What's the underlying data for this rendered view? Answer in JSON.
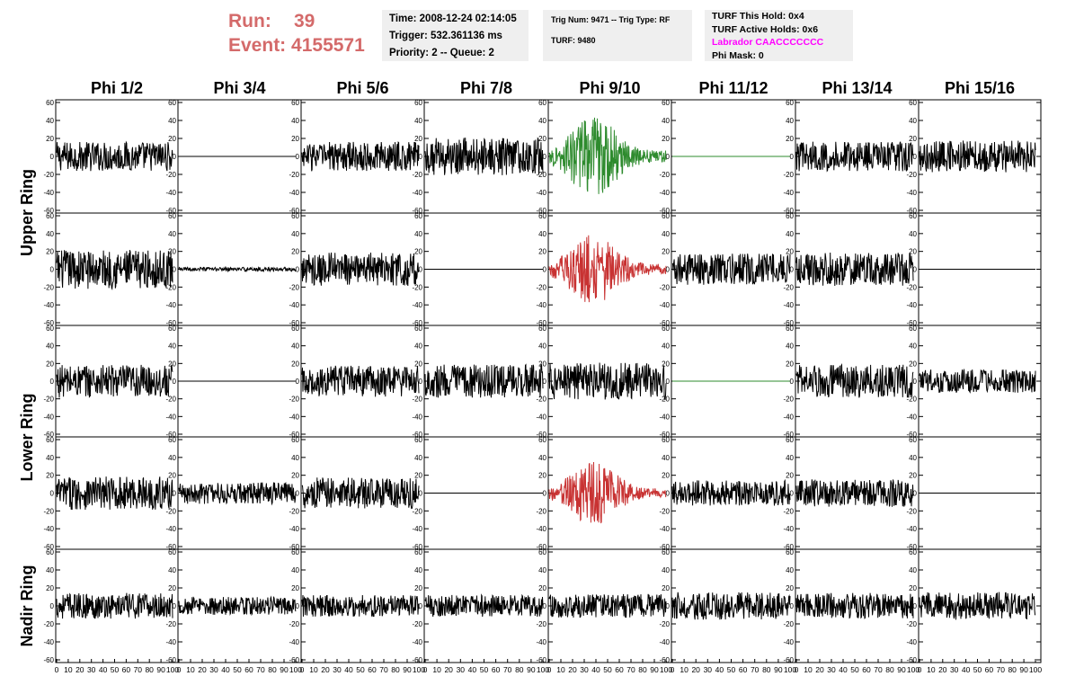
{
  "header": {
    "run_label": "Run:",
    "run_value": "39",
    "event_label": "Event:",
    "event_value": "4155571",
    "time": "Time: 2008-12-24 02:14:05",
    "trigger": "Trigger: 532.361136 ms",
    "priority": "Priority: 2 -- Queue: 2",
    "trig_num": "Trig Num: 9471 -- Trig Type: RF",
    "turf": "TURF: 9480",
    "turf_hold": "TURF This Hold: 0x4",
    "turf_active": "TURF Active Holds: 0x6",
    "labrador": "Labrador CAACCCCCCC",
    "phi_mask": "Phi Mask: 0"
  },
  "colors": {
    "run_text": "#d46a6a",
    "labrador_text": "#ff00ff",
    "trace_default": "#000000",
    "trace_green": "#2e8b2e",
    "trace_red": "#c83232"
  },
  "chart_data": {
    "type": "line",
    "column_headers": [
      "Phi 1/2",
      "Phi 3/4",
      "Phi 5/6",
      "Phi 7/8",
      "Phi 9/10",
      "Phi 11/12",
      "Phi 13/14",
      "Phi 15/16"
    ],
    "row_labels": [
      "Upper Ring",
      "Lower Ring",
      "Nadir Ring"
    ],
    "xlim": [
      0,
      100
    ],
    "ylim": [
      -60,
      60
    ],
    "y_ticks": [
      -60,
      -40,
      -20,
      0,
      20,
      40,
      60
    ],
    "y_tick_labels": [
      "-60",
      "-40",
      "-20",
      "0",
      "20",
      "40",
      "60"
    ],
    "x_ticks": [
      0,
      10,
      20,
      30,
      40,
      50,
      60,
      70,
      80,
      90,
      100
    ],
    "x_tick_labels": [
      "0",
      "10",
      "20",
      "30",
      "40",
      "50",
      "60",
      "70",
      "80",
      "90",
      "100"
    ],
    "panel_rows": 5,
    "grid": false,
    "waveforms": [
      [
        {
          "style": "noise",
          "amp": 15,
          "color": "default"
        },
        {
          "style": "flat",
          "amp": 0,
          "color": "default"
        },
        {
          "style": "noise",
          "amp": 15,
          "color": "default"
        },
        {
          "style": "noise",
          "amp": 19,
          "color": "default"
        },
        {
          "style": "pulse",
          "amp": 40,
          "color": "green"
        },
        {
          "style": "flat",
          "amp": 0,
          "color": "green"
        },
        {
          "style": "noise",
          "amp": 15,
          "color": "default"
        },
        {
          "style": "noise",
          "amp": 16,
          "color": "default"
        }
      ],
      [
        {
          "style": "noise",
          "amp": 20,
          "color": "default"
        },
        {
          "style": "noise",
          "amp": 2,
          "color": "default"
        },
        {
          "style": "noise",
          "amp": 17,
          "color": "default"
        },
        {
          "style": "flat",
          "amp": 0,
          "color": "default"
        },
        {
          "style": "pulse",
          "amp": 35,
          "color": "red"
        },
        {
          "style": "noise",
          "amp": 16,
          "color": "default"
        },
        {
          "style": "noise",
          "amp": 17,
          "color": "default"
        },
        {
          "style": "flat",
          "amp": 0,
          "color": "default"
        }
      ],
      [
        {
          "style": "noise",
          "amp": 17,
          "color": "default"
        },
        {
          "style": "flat",
          "amp": 0,
          "color": "default"
        },
        {
          "style": "noise",
          "amp": 16,
          "color": "default"
        },
        {
          "style": "noise",
          "amp": 17,
          "color": "default"
        },
        {
          "style": "noise",
          "amp": 19,
          "color": "default"
        },
        {
          "style": "flat",
          "amp": 0,
          "color": "green"
        },
        {
          "style": "noise",
          "amp": 17,
          "color": "default"
        },
        {
          "style": "noise",
          "amp": 12,
          "color": "default"
        }
      ],
      [
        {
          "style": "noise",
          "amp": 17,
          "color": "default"
        },
        {
          "style": "noise",
          "amp": 11,
          "color": "default"
        },
        {
          "style": "noise",
          "amp": 16,
          "color": "default"
        },
        {
          "style": "flat",
          "amp": 0,
          "color": "default"
        },
        {
          "style": "pulse",
          "amp": 32,
          "color": "red"
        },
        {
          "style": "noise",
          "amp": 13,
          "color": "default"
        },
        {
          "style": "noise",
          "amp": 14,
          "color": "default"
        },
        {
          "style": "flat",
          "amp": 0,
          "color": "default"
        }
      ],
      [
        {
          "style": "noise",
          "amp": 13,
          "color": "default"
        },
        {
          "style": "noise",
          "amp": 9,
          "color": "default"
        },
        {
          "style": "noise",
          "amp": 11,
          "color": "default"
        },
        {
          "style": "noise",
          "amp": 11,
          "color": "default"
        },
        {
          "style": "noise",
          "amp": 12,
          "color": "default"
        },
        {
          "style": "noise",
          "amp": 14,
          "color": "default"
        },
        {
          "style": "noise",
          "amp": 13,
          "color": "default"
        },
        {
          "style": "noise",
          "amp": 14,
          "color": "default"
        }
      ]
    ]
  }
}
